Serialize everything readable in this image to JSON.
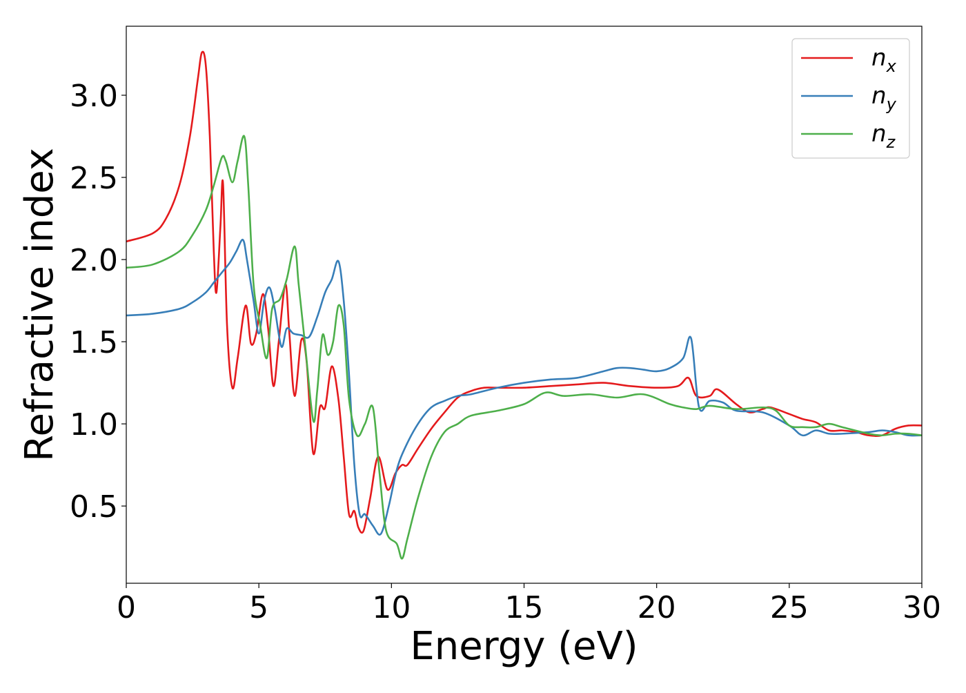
{
  "chart_data": {
    "type": "line",
    "title": "",
    "xlabel": "Energy (eV)",
    "ylabel": "Refractive index",
    "xlim": [
      0,
      30
    ],
    "ylim": [
      0.03,
      3.42
    ],
    "xticks": [
      0,
      5,
      10,
      15,
      20,
      25,
      30
    ],
    "xtick_labels": [
      "0",
      "5",
      "10",
      "15",
      "20",
      "25",
      "30"
    ],
    "yticks": [
      0.5,
      1.0,
      1.5,
      2.0,
      2.5,
      3.0
    ],
    "ytick_labels": [
      "0.5",
      "1.0",
      "1.5",
      "2.0",
      "2.5",
      "3.0"
    ],
    "grid": false,
    "legend": "top-right",
    "series": [
      {
        "name": "n_x",
        "label_main": "n",
        "label_sub": "x",
        "color": "#e41a1c",
        "x": [
          0,
          1,
          1.5,
          2,
          2.4,
          2.7,
          2.85,
          3.0,
          3.15,
          3.3,
          3.4,
          3.55,
          3.65,
          3.8,
          4.0,
          4.2,
          4.5,
          4.7,
          4.9,
          5.15,
          5.35,
          5.55,
          5.75,
          6.0,
          6.15,
          6.35,
          6.6,
          6.8,
          7.05,
          7.3,
          7.5,
          7.75,
          8.0,
          8.2,
          8.4,
          8.6,
          8.75,
          8.95,
          9.2,
          9.5,
          9.85,
          10.15,
          10.4,
          10.6,
          11.0,
          11.5,
          12.0,
          12.5,
          13.0,
          13.5,
          14.0,
          15.0,
          16.0,
          17.0,
          18.0,
          19.0,
          20.0,
          20.8,
          21.2,
          21.5,
          22.0,
          22.3,
          23.0,
          23.5,
          24.0,
          24.3,
          25.0,
          25.5,
          26.0,
          26.5,
          27.0,
          27.5,
          28.0,
          28.5,
          29.0,
          29.5,
          30.0
        ],
        "y": [
          2.11,
          2.16,
          2.25,
          2.45,
          2.75,
          3.1,
          3.26,
          3.18,
          2.75,
          2.05,
          1.8,
          2.2,
          2.46,
          1.6,
          1.22,
          1.4,
          1.72,
          1.49,
          1.55,
          1.79,
          1.58,
          1.23,
          1.5,
          1.85,
          1.55,
          1.17,
          1.51,
          1.38,
          0.82,
          1.1,
          1.1,
          1.35,
          1.15,
          0.8,
          0.45,
          0.47,
          0.37,
          0.35,
          0.55,
          0.8,
          0.6,
          0.7,
          0.75,
          0.75,
          0.85,
          0.97,
          1.07,
          1.16,
          1.2,
          1.22,
          1.22,
          1.22,
          1.23,
          1.24,
          1.25,
          1.23,
          1.22,
          1.23,
          1.28,
          1.17,
          1.17,
          1.21,
          1.12,
          1.07,
          1.09,
          1.1,
          1.06,
          1.03,
          1.01,
          0.96,
          0.96,
          0.95,
          0.93,
          0.93,
          0.97,
          0.99,
          0.99
        ]
      },
      {
        "name": "n_y",
        "label_main": "n",
        "label_sub": "y",
        "color": "#377eb8",
        "x": [
          0,
          1,
          2,
          2.5,
          3.0,
          3.3,
          3.6,
          3.9,
          4.15,
          4.4,
          4.55,
          4.8,
          5.0,
          5.2,
          5.4,
          5.6,
          5.85,
          6.05,
          6.3,
          6.6,
          6.9,
          7.2,
          7.5,
          7.75,
          8.0,
          8.2,
          8.4,
          8.6,
          8.8,
          9.0,
          9.3,
          9.6,
          9.9,
          10.2,
          10.5,
          11.0,
          11.5,
          12.0,
          12.5,
          13.0,
          14.0,
          15.0,
          16.0,
          17.0,
          18.0,
          18.5,
          19.0,
          19.5,
          20.0,
          20.5,
          21.0,
          21.3,
          21.6,
          22.0,
          22.5,
          23.0,
          24.0,
          25.0,
          25.5,
          26.0,
          26.5,
          27.0,
          28.0,
          28.5,
          29.0,
          29.5,
          30.0
        ],
        "y": [
          1.66,
          1.67,
          1.7,
          1.74,
          1.8,
          1.86,
          1.92,
          1.98,
          2.05,
          2.12,
          2.0,
          1.75,
          1.55,
          1.75,
          1.83,
          1.7,
          1.47,
          1.58,
          1.55,
          1.54,
          1.53,
          1.65,
          1.8,
          1.88,
          1.99,
          1.75,
          1.3,
          0.75,
          0.45,
          0.45,
          0.38,
          0.33,
          0.5,
          0.72,
          0.85,
          1.0,
          1.1,
          1.14,
          1.17,
          1.18,
          1.22,
          1.25,
          1.27,
          1.28,
          1.32,
          1.34,
          1.34,
          1.33,
          1.32,
          1.34,
          1.4,
          1.52,
          1.1,
          1.14,
          1.13,
          1.08,
          1.07,
          0.99,
          0.93,
          0.96,
          0.94,
          0.94,
          0.95,
          0.96,
          0.95,
          0.93,
          0.93
        ]
      },
      {
        "name": "n_z",
        "label_main": "n",
        "label_sub": "z",
        "color": "#4daf4a",
        "x": [
          0,
          1,
          2,
          2.5,
          3.0,
          3.3,
          3.6,
          3.75,
          4.0,
          4.2,
          4.45,
          4.6,
          4.8,
          5.05,
          5.3,
          5.5,
          5.8,
          6.05,
          6.35,
          6.5,
          6.75,
          7.05,
          7.2,
          7.4,
          7.6,
          7.8,
          8.0,
          8.2,
          8.4,
          8.7,
          9.0,
          9.3,
          9.55,
          9.8,
          10.2,
          10.4,
          10.6,
          11.0,
          11.5,
          12.0,
          12.5,
          13.0,
          14.0,
          15.0,
          15.8,
          16.5,
          17.5,
          18.5,
          19.5,
          20.5,
          21.0,
          21.5,
          22.0,
          23.0,
          24.0,
          24.5,
          25.0,
          25.5,
          26.0,
          26.5,
          27.0,
          28.0,
          28.5,
          29.0,
          29.5,
          30.0
        ],
        "y": [
          1.95,
          1.97,
          2.05,
          2.15,
          2.3,
          2.45,
          2.62,
          2.6,
          2.47,
          2.6,
          2.75,
          2.45,
          1.85,
          1.6,
          1.4,
          1.7,
          1.76,
          1.88,
          2.08,
          1.85,
          1.47,
          1.02,
          1.2,
          1.54,
          1.42,
          1.5,
          1.72,
          1.6,
          1.15,
          0.93,
          1.0,
          1.1,
          0.7,
          0.35,
          0.27,
          0.18,
          0.3,
          0.55,
          0.8,
          0.95,
          1.0,
          1.05,
          1.08,
          1.12,
          1.19,
          1.17,
          1.18,
          1.16,
          1.18,
          1.12,
          1.1,
          1.09,
          1.11,
          1.09,
          1.1,
          1.08,
          0.99,
          0.98,
          0.98,
          1.0,
          0.98,
          0.94,
          0.93,
          0.94,
          0.94,
          0.93
        ]
      }
    ]
  }
}
